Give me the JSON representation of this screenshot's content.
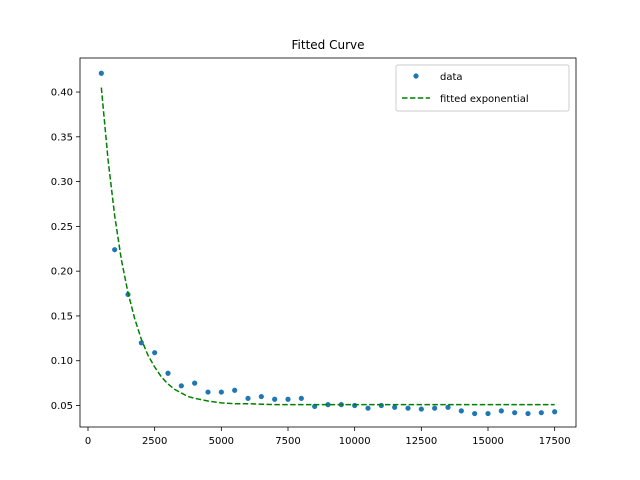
{
  "chart_data": {
    "type": "scatter",
    "title": "Fitted Curve",
    "xlabel": "",
    "ylabel": "",
    "xlim": [
      -300,
      18300
    ],
    "ylim": [
      0.026,
      0.438
    ],
    "xticks": [
      0,
      2500,
      5000,
      7500,
      10000,
      12500,
      15000,
      17500
    ],
    "xtick_labels": [
      "0",
      "2500",
      "5000",
      "7500",
      "10000",
      "12500",
      "15000",
      "17500"
    ],
    "yticks": [
      0.05,
      0.1,
      0.15,
      0.2,
      0.25,
      0.3,
      0.35,
      0.4
    ],
    "ytick_labels": [
      "0.05",
      "0.10",
      "0.15",
      "0.20",
      "0.25",
      "0.30",
      "0.35",
      "0.40"
    ],
    "grid": false,
    "legend_position": "top-right",
    "series": [
      {
        "name": "data",
        "kind": "scatter",
        "color": "#1f77b4",
        "x": [
          500,
          1000,
          1500,
          2000,
          2500,
          3000,
          3500,
          4000,
          4500,
          5000,
          5500,
          6000,
          6500,
          7000,
          7500,
          8000,
          8500,
          9000,
          9500,
          10000,
          10500,
          11000,
          11500,
          12000,
          12500,
          13000,
          13500,
          14000,
          14500,
          15000,
          15500,
          16000,
          16500,
          17000,
          17500
        ],
        "y": [
          0.421,
          0.224,
          0.174,
          0.12,
          0.109,
          0.086,
          0.072,
          0.075,
          0.065,
          0.065,
          0.067,
          0.058,
          0.06,
          0.057,
          0.057,
          0.058,
          0.049,
          0.051,
          0.051,
          0.05,
          0.047,
          0.05,
          0.048,
          0.047,
          0.046,
          0.047,
          0.048,
          0.044,
          0.041,
          0.041,
          0.044,
          0.042,
          0.041,
          0.042,
          0.043
        ]
      },
      {
        "name": "fitted exponential",
        "kind": "line",
        "style": "dashed",
        "color": "#008000",
        "x": [
          500,
          750,
          1000,
          1250,
          1500,
          1750,
          2000,
          2250,
          2500,
          2750,
          3000,
          3250,
          3500,
          3750,
          4000,
          4500,
          5000,
          5500,
          6000,
          7000,
          8000,
          9000,
          10000,
          11000,
          12000,
          13000,
          14000,
          15000,
          16000,
          17000,
          17500
        ],
        "y": [
          0.405,
          0.325,
          0.262,
          0.213,
          0.176,
          0.147,
          0.124,
          0.106,
          0.093,
          0.082,
          0.074,
          0.068,
          0.064,
          0.06,
          0.058,
          0.055,
          0.053,
          0.052,
          0.052,
          0.051,
          0.051,
          0.051,
          0.051,
          0.051,
          0.051,
          0.051,
          0.051,
          0.051,
          0.051,
          0.051,
          0.051
        ]
      }
    ]
  }
}
